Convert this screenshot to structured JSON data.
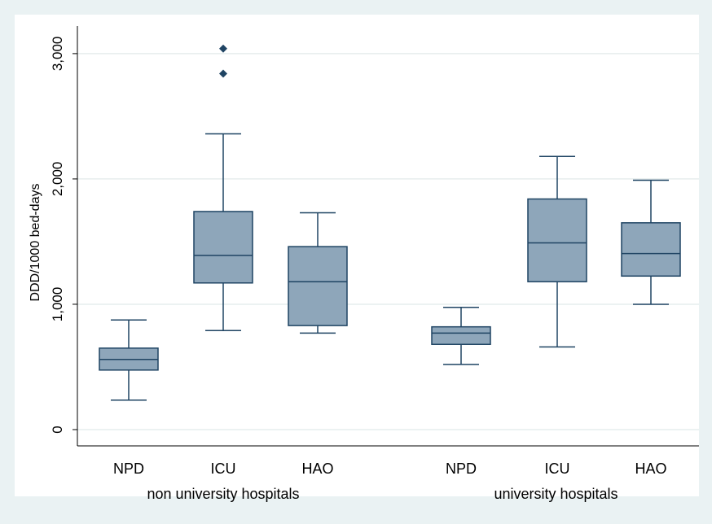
{
  "chart_data": {
    "type": "box",
    "title": "",
    "ylabel": "DDD/1000 bed-days",
    "ylim": [
      -130,
      3220
    ],
    "yticks": [
      0,
      1000,
      2000,
      3000
    ],
    "ytick_labels": [
      "0",
      "1,000",
      "2,000",
      "3,000"
    ],
    "grid": true,
    "groups": [
      {
        "label": "non university hospitals",
        "boxes": [
          {
            "category": "NPD",
            "whisker_low": 235,
            "q1": 475,
            "median": 560,
            "q3": 650,
            "whisker_high": 875,
            "outliers": []
          },
          {
            "category": "ICU",
            "whisker_low": 790,
            "q1": 1170,
            "median": 1390,
            "q3": 1740,
            "whisker_high": 2360,
            "outliers": [
              2840,
              3040
            ]
          },
          {
            "category": "HAO",
            "whisker_low": 770,
            "q1": 830,
            "median": 1180,
            "q3": 1460,
            "whisker_high": 1730,
            "outliers": []
          }
        ]
      },
      {
        "label": "university hospitals",
        "boxes": [
          {
            "category": "NPD",
            "whisker_low": 520,
            "q1": 680,
            "median": 770,
            "q3": 820,
            "whisker_high": 975,
            "outliers": []
          },
          {
            "category": "ICU",
            "whisker_low": 660,
            "q1": 1180,
            "median": 1490,
            "q3": 1840,
            "whisker_high": 2180,
            "outliers": []
          },
          {
            "category": "HAO",
            "whisker_low": 1000,
            "q1": 1225,
            "median": 1405,
            "q3": 1650,
            "whisker_high": 1990,
            "outliers": []
          }
        ]
      }
    ],
    "colors": {
      "page_bg": "#eaf2f3",
      "plot_bg": "#ffffff",
      "box_fill": "#8ea6ba",
      "box_stroke": "#1f4463",
      "gridline": "#e6eded",
      "outlier": "#1f4463"
    }
  }
}
